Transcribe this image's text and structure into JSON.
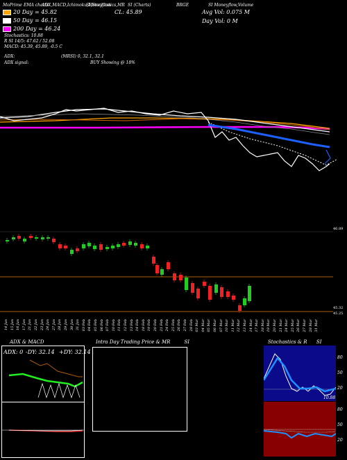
{
  "header": {
    "row1": [
      {
        "text": "MoPrime",
        "x": 5
      },
      {
        "text": "EMA charts",
        "x": 36
      },
      {
        "text": "ADX,MACD,Ichimoku,Moneyflow",
        "x": 60
      },
      {
        "text": "SI,Stochastics,MR",
        "x": 120
      },
      {
        "text": "SI (Charts)",
        "x": 180
      },
      {
        "text": "BRGE",
        "x": 250
      },
      {
        "text": "SI Moneyflow,Volume",
        "x": 296
      }
    ]
  },
  "legend": {
    "ema20": {
      "label": "20 Day = 45.82",
      "color": "#ffa500"
    },
    "ema50": {
      "label": "50 Day = 46.15",
      "color": "#ffffff"
    },
    "ema200": {
      "label": "200 Day = 46.24",
      "color": "#ff00ff"
    },
    "close": "CL: 45.89",
    "avg_vol": "Avg Vol: 0.075  M",
    "day_vol": "Day Vol: 0  M",
    "stoch": "Stochastics: 10.88",
    "r_si": "R          SI 14/5: 47.62 / 52.08",
    "macd": "MACD: 45.39, 45.89, -0.5 C",
    "adx": "ADX:",
    "mrsi": "(MRSI) 0, 32.1, 32.1",
    "adx_signal": "ADX signal:",
    "buy_showing": "BUY Showing @ 18%"
  },
  "price_chart": {
    "right_label_top": "46.89",
    "right_label_mid": "45.32",
    "right_label_bot": "45.25",
    "dates": [
      "14 Jan",
      "15 Jan",
      "16 Jan",
      "17 Jan",
      "21 Jan",
      "22 Jan",
      "23 Jan",
      "24 Jan",
      "27 Jan",
      "28 Jan",
      "29 Jan",
      "30 Jan",
      "31 Jan",
      "03 Feb",
      "04 Feb",
      "05 Feb",
      "06 Feb",
      "07 Feb",
      "10 Feb",
      "11 Feb",
      "12 Feb",
      "13 Feb",
      "14 Feb",
      "18 Feb",
      "19 Feb",
      "20 Feb",
      "21 Feb",
      "24 Feb",
      "25 Feb",
      "26 Feb",
      "27 Feb",
      "28 Feb",
      "03 Mar",
      "04 Mar",
      "05 Mar",
      "06 Mar",
      "07 Mar",
      "10 Mar",
      "11 Mar",
      "12 Mar",
      "13 Mar",
      "14 Mar",
      "17 Mar",
      "18 Mar",
      "19 Mar",
      "20 Mar",
      "21 Mar",
      "24 Mar",
      "25 Mar",
      "26 Mar",
      "27 Mar",
      "28 Mar",
      "31 Mar"
    ]
  },
  "panels": {
    "adx": {
      "title": "ADX  & MACD",
      "adx_val": "ADX: 0",
      "minus_di": "-DY: 32.14",
      "plus_di": "+DY: 32.14"
    },
    "intraday": {
      "title": "Intra Day Trading Price  & MR",
      "suffix": "SI"
    },
    "stoch": {
      "title": "Stochastics & R",
      "suffix": "SI",
      "ticks": [
        "80",
        "50",
        "20"
      ],
      "si_ticks": [
        "80",
        "50",
        "20"
      ],
      "end_label": "10.88"
    }
  },
  "colors": {
    "ema20": "#ffa500",
    "ema50": "#ffffff",
    "ema200": "#ff00ff",
    "blue": "#1e60ff",
    "bull": "#22cc22",
    "bear": "#ee2222",
    "orange_line": "#b05a00",
    "stoch_bg": "#0a0a8a",
    "si_bg": "#880000"
  }
}
